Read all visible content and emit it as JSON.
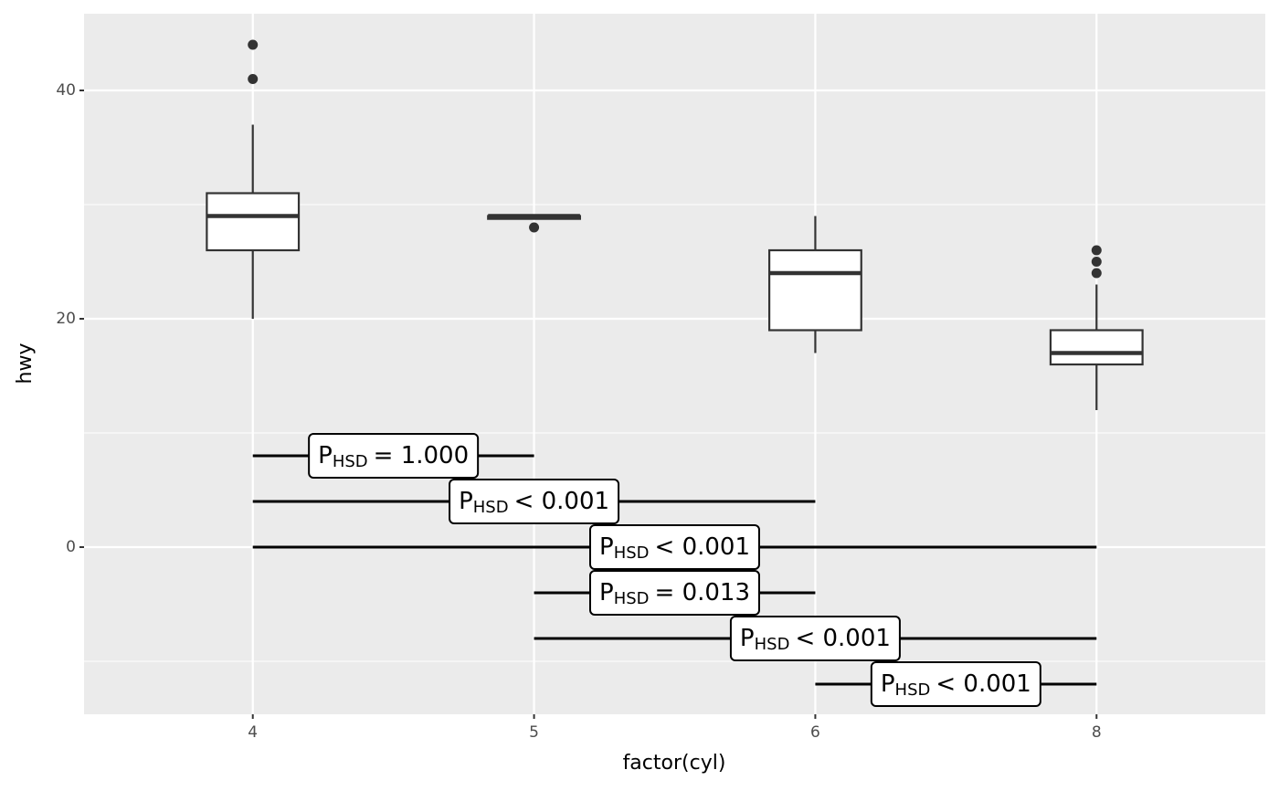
{
  "chart_data": {
    "type": "box",
    "x_label": "factor(cyl)",
    "y_label": "hwy",
    "categories": [
      "4",
      "5",
      "6",
      "8"
    ],
    "boxes": [
      {
        "min": 20,
        "q1": 26,
        "median": 29,
        "q3": 31,
        "max": 37,
        "outliers": [
          44,
          41
        ]
      },
      {
        "min": 28.75,
        "q1": 28.75,
        "median": 29,
        "q3": 29,
        "max": 29,
        "outliers": [
          28
        ]
      },
      {
        "min": 17,
        "q1": 19,
        "median": 24,
        "q3": 26,
        "max": 29,
        "outliers": []
      },
      {
        "min": 12,
        "q1": 16,
        "median": 17,
        "q3": 19,
        "max": 23,
        "outliers": [
          26,
          25,
          24
        ]
      }
    ],
    "ylim": [
      -14.64,
      46.72
    ],
    "yticks": [
      0,
      20,
      40
    ],
    "grid": true,
    "comparisons": [
      {
        "from": "4",
        "to": "5",
        "y": 8,
        "label": {
          "p": "P",
          "sub": "HSD",
          "text": "= 1.000"
        }
      },
      {
        "from": "4",
        "to": "6",
        "y": 4,
        "label": {
          "p": "P",
          "sub": "HSD",
          "text": "< 0.001"
        }
      },
      {
        "from": "4",
        "to": "8",
        "y": 0,
        "label": {
          "p": "P",
          "sub": "HSD",
          "text": "< 0.001"
        }
      },
      {
        "from": "5",
        "to": "6",
        "y": -4,
        "label": {
          "p": "P",
          "sub": "HSD",
          "text": "= 0.013"
        }
      },
      {
        "from": "5",
        "to": "8",
        "y": -8,
        "label": {
          "p": "P",
          "sub": "HSD",
          "text": "< 0.001"
        }
      },
      {
        "from": "6",
        "to": "8",
        "y": -12,
        "label": {
          "p": "P",
          "sub": "HSD",
          "text": "< 0.001"
        }
      }
    ]
  }
}
